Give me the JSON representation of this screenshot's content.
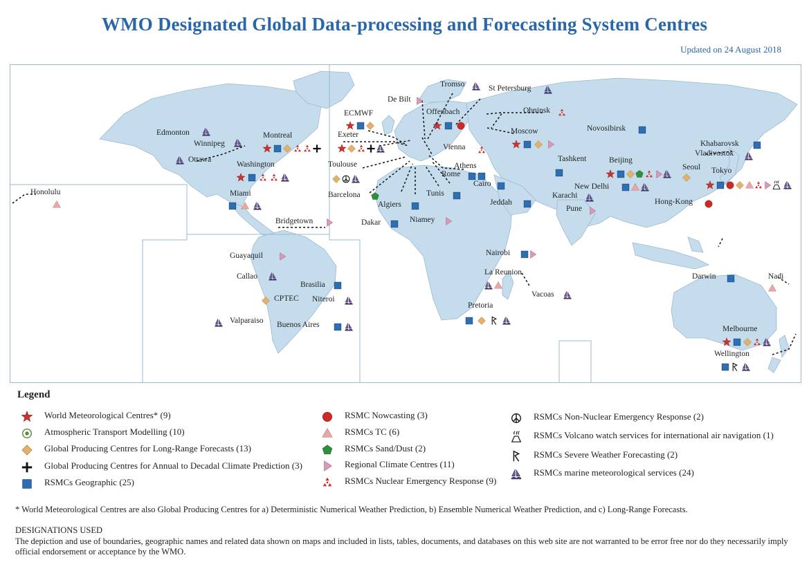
{
  "title": "WMO Designated Global Data-processing and Forecasting System Centres",
  "updated": "Updated on 24 August 2018",
  "colors": {
    "ocean": "#ffffff",
    "land": "#c5dced",
    "coast": "#9db9cf",
    "title": "#2a67a8",
    "square": "#2e6fb3",
    "star": "#d0312d",
    "circle": "#cc2a27",
    "diamond": "#e2b16b",
    "triangle": "#e9a8a6",
    "pentagon": "#2f8f3c",
    "rcc": "#d99ab8",
    "marine": "#4b3b6e",
    "nuclear": "#cf2a2a"
  },
  "cities": {
    "edmonton": "Edmonton",
    "winnipeg": "Winnipeg",
    "ottawa": "Ottawa",
    "montreal": "Montreal",
    "washington": "Washington",
    "miami": "Miami",
    "honolulu": "Honolulu",
    "bridgetown": "Bridgetown",
    "guayaquil": "Guayaquil",
    "callao": "Callao",
    "brasilia": "Brasilia",
    "cptec": "CPTEC",
    "niteroi": "Niteroi",
    "valparaiso": "Valparaiso",
    "buenosaires": "Buenos Aires",
    "ecmwf": "ECMWF",
    "exeter": "Exeter",
    "toulouse": "Toulouse",
    "barcelona": "Barcelona",
    "algiers": "Algiers",
    "dakar": "Dakar",
    "tunis": "Tunis",
    "niamey": "Niamey",
    "rome": "Rome",
    "athens": "Athens",
    "cairo": "Cairo",
    "jeddah": "Jeddah",
    "debilt": "De Bilt",
    "tromso": "Tromso",
    "offenbach": "Offenbach",
    "stpetersburg": "St Petersburg",
    "vienna": "Vienna",
    "obninsk": "Obninsk",
    "moscow": "Moscow",
    "novosibirsk": "Novosibirsk",
    "tashkent": "Tashkent",
    "beijing": "Beijing",
    "seoul": "Seoul",
    "tokyo": "Tokyo",
    "khabarovsk": "Khabarovsk",
    "vladivostok": "Vladivostok",
    "newdelhi": "New Delhi",
    "karachi": "Karachi",
    "pune": "Pune",
    "hongkong": "Hong-Kong",
    "nairobi": "Nairobi",
    "lareunion": "La Reunion",
    "vacoas": "Vacoas",
    "pretoria": "Pretoria",
    "darwin": "Darwin",
    "nadi": "Nadi",
    "melbourne": "Melbourne",
    "wellington": "Wellington"
  },
  "legend": {
    "title": "Legend",
    "wmc": "World Meteorological Centres* (9)",
    "atm": "Atmospheric Transport Modelling (10)",
    "gpc_lrf": "Global Producing Centres for Long-Range Forecasts (13)",
    "gpc_adcp": "Global Producing Centres for Annual to Decadal Climate Prediction (3)",
    "geo": "RSMCs Geographic (25)",
    "nowcast": "RSMC Nowcasting (3)",
    "tc": "RSMCs TC (6)",
    "sds": "RSMCs Sand/Dust (2)",
    "rcc": "Regional Climate Centres (11)",
    "ner": "RSMCs Nuclear Emergency Response (9)",
    "nner": "RSMCs Non-Nuclear Emergency Response (2)",
    "volcano": "RSMCs Volcano watch services for international air navigation (1)",
    "swf": "RSMCs Severe Weather Forecasting (2)",
    "marine": "RSMCs marine meteorological services (24)"
  },
  "footnote": "* World Meteorological Centres are also Global Producing Centres for a) Deterministic Numerical Weather Prediction, b) Ensemble Numerical Weather Prediction, and c) Long-Range Forecasts.",
  "designations_title": "DESIGNATIONS USED",
  "designations_text": "The depiction and use of boundaries, geographic names and related data shown on maps and included in lists, tables, documents, and databases on this web site are not warranted to be error free nor do they necessarily imply official endorsement or acceptance by the WMO."
}
